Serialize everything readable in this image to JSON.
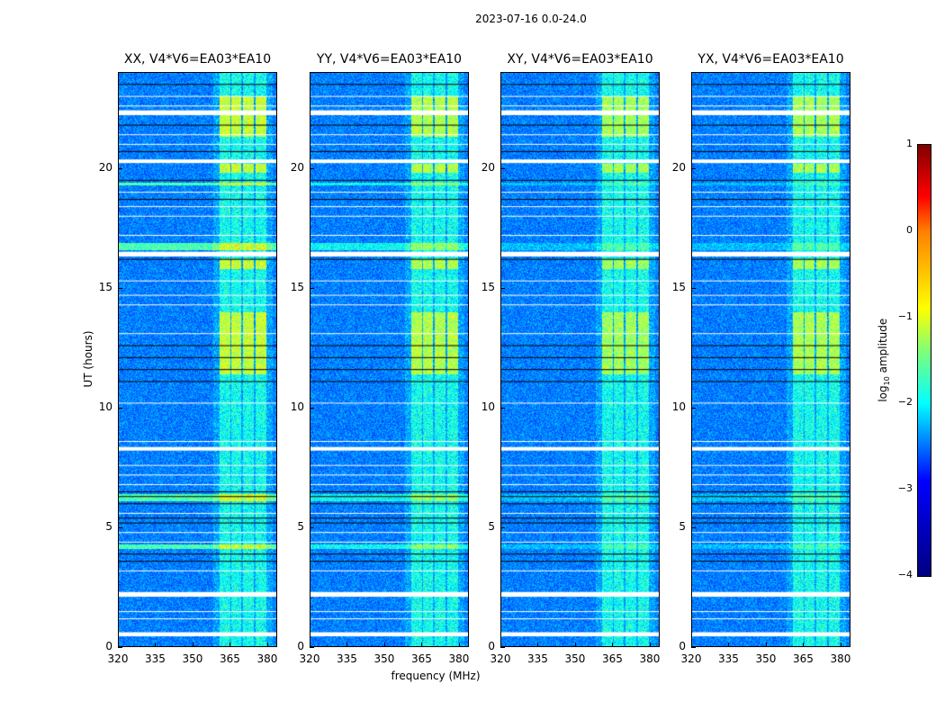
{
  "suptitle": "2023-07-16 0.0-24.0",
  "chart_data": {
    "type": "heatmap",
    "xlabel": "frequency (MHz)",
    "ylabel": "UT (hours)",
    "xlim": [
      320,
      384
    ],
    "ylim": [
      0,
      24
    ],
    "xticks": [
      "320",
      "335",
      "350",
      "365",
      "380"
    ],
    "xtick_values": [
      320,
      335,
      350,
      365,
      380
    ],
    "yticks": [
      "0",
      "5",
      "10",
      "15",
      "20"
    ],
    "ytick_values": [
      0,
      5,
      10,
      15,
      20
    ],
    "panels": [
      {
        "title": "XX, V4*V6=EA03*EA10",
        "pol": "XX",
        "bright_band_boost": 1.0,
        "bright_low_time_boost": 1.0
      },
      {
        "title": "YY, V4*V6=EA03*EA10",
        "pol": "YY",
        "bright_band_boost": 0.9,
        "bright_low_time_boost": 0.6
      },
      {
        "title": "XY, V4*V6=EA03*EA10",
        "pol": "XY",
        "bright_band_boost": 0.8,
        "bright_low_time_boost": 0.2
      },
      {
        "title": "YX, V4*V6=EA03*EA10",
        "pol": "YX",
        "bright_band_boost": 0.85,
        "bright_low_time_boost": 0.2
      }
    ],
    "rfi_channels_mhz": [
      [
        360.5,
        365
      ],
      [
        365.5,
        369.5
      ],
      [
        370,
        374.5
      ],
      [
        375,
        379.6
      ]
    ],
    "bright_intervals_hours": [
      [
        11.4,
        14.0
      ],
      [
        21.3,
        23.0
      ],
      [
        15.8,
        16.2
      ],
      [
        19.8,
        20.2
      ]
    ],
    "flagged_hours": [
      [
        0.45,
        0.62
      ],
      [
        2.1,
        2.3
      ],
      [
        8.2,
        8.35
      ],
      [
        16.3,
        16.5
      ],
      [
        20.2,
        20.35
      ],
      [
        22.2,
        22.4
      ]
    ],
    "flag_lines_hours": [
      1.2,
      1.5,
      3.2,
      4.4,
      4.8,
      5.6,
      6.8,
      7.2,
      7.6,
      8.6,
      10.2,
      13.1,
      14.3,
      14.7,
      15.3,
      17.2,
      18.0,
      18.4,
      19.0,
      21.0,
      21.4,
      22.6,
      23.0
    ],
    "dark_lines_hours": [
      3.6,
      3.9,
      5.2,
      5.4,
      6.0,
      6.3,
      6.5,
      11.1,
      11.6,
      12.1,
      12.6,
      16.2,
      18.7,
      19.5,
      20.7,
      21.8,
      23.5
    ],
    "green_time_bands_hours": [
      [
        4.1,
        4.3
      ],
      [
        6.1,
        6.4
      ],
      [
        16.6,
        16.9
      ],
      [
        19.3,
        19.4
      ]
    ],
    "colorbar": {
      "label": "log10 amplitude",
      "label_main": "log",
      "label_sub": "10",
      "label_rest": " amplitude",
      "range": [
        -4,
        1
      ],
      "ticks": [
        "1",
        "0",
        "−1",
        "−2",
        "−3",
        "−4"
      ],
      "tick_values": [
        1,
        0,
        -1,
        -2,
        -3,
        -4
      ],
      "colormap": "jet"
    }
  }
}
